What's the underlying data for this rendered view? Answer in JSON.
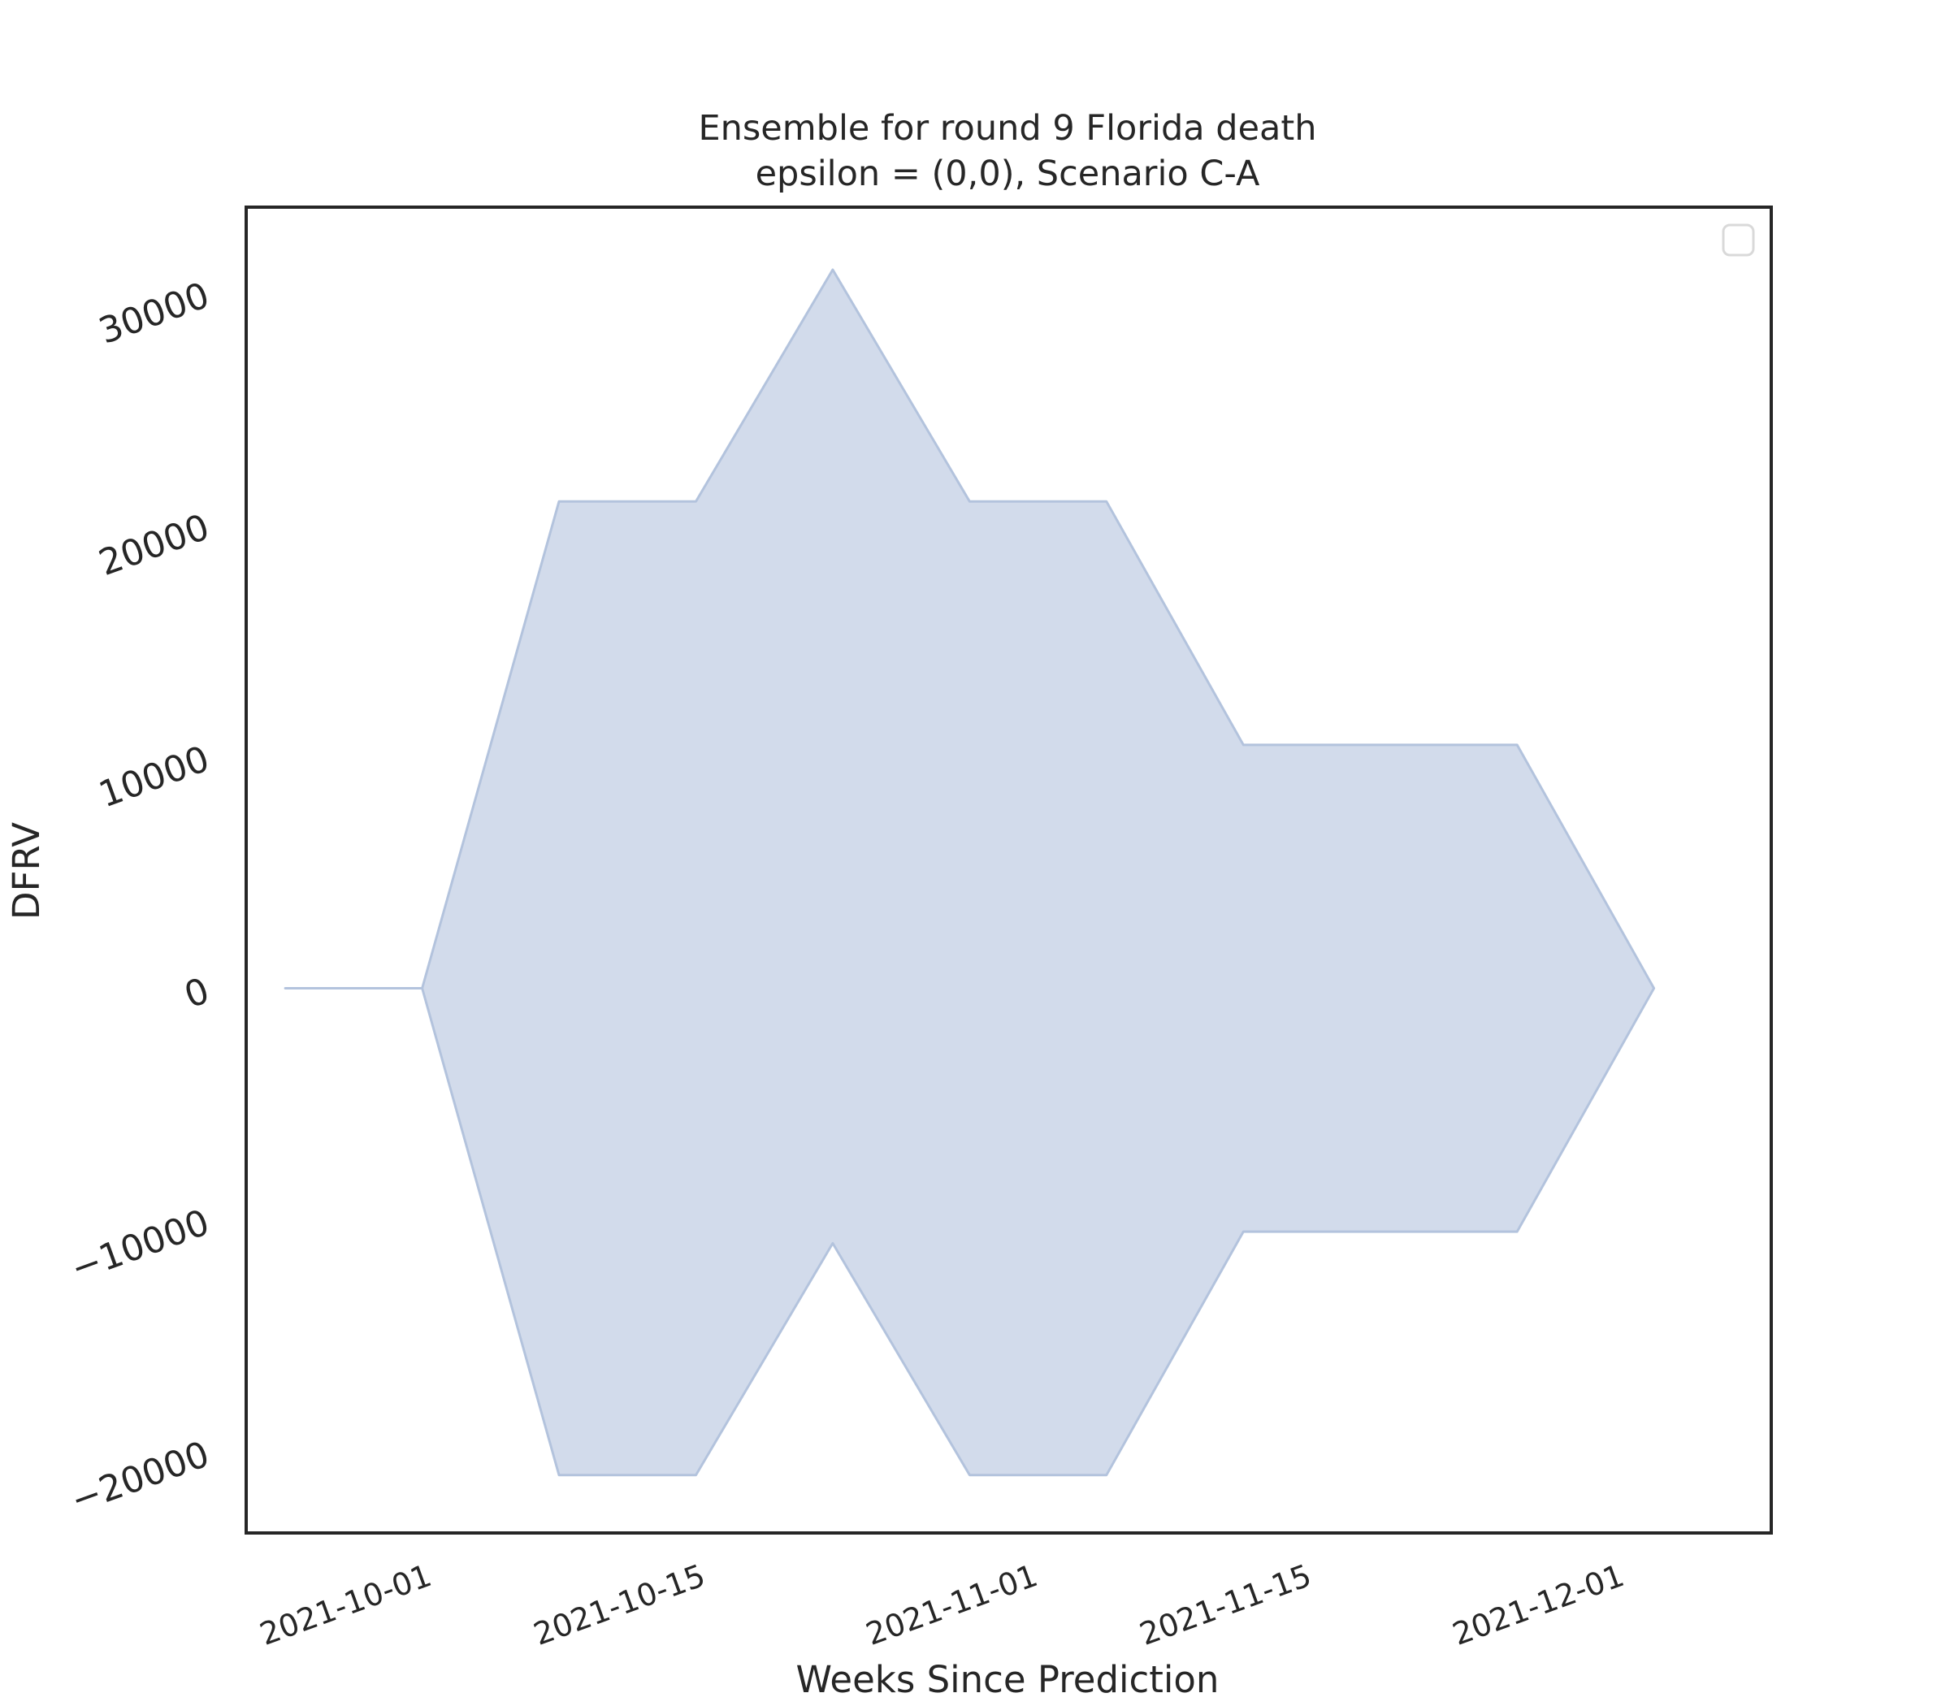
{
  "chart_data": {
    "type": "area",
    "title_line1": "Ensemble for round 9 Florida death",
    "title_line2": "epsilon = (0,0), Scenario C-A",
    "xlabel": "Weeks Since Prediction",
    "ylabel": "DFRV",
    "x_dates": [
      "2021-09-24",
      "2021-10-01",
      "2021-10-08",
      "2021-10-15",
      "2021-10-22",
      "2021-10-29",
      "2021-11-05",
      "2021-11-12",
      "2021-11-19",
      "2021-11-26",
      "2021-12-03"
    ],
    "upper": [
      0,
      0,
      21000,
      21000,
      31000,
      21000,
      21000,
      10500,
      10500,
      10500,
      0
    ],
    "lower": [
      0,
      0,
      -21000,
      -21000,
      -11000,
      -21000,
      -21000,
      -10500,
      -10500,
      -10500,
      0
    ],
    "xlim": [
      "2021-09-22",
      "2021-12-09"
    ],
    "ylim": [
      -23500,
      33700
    ],
    "yticks": [
      {
        "value": -20000,
        "label": "−20000"
      },
      {
        "value": -10000,
        "label": "−10000"
      },
      {
        "value": 0,
        "label": "0"
      },
      {
        "value": 10000,
        "label": "10000"
      },
      {
        "value": 20000,
        "label": "20000"
      },
      {
        "value": 30000,
        "label": "30000"
      }
    ],
    "xticks": [
      {
        "date": "2021-10-01",
        "label": "2021-10-01"
      },
      {
        "date": "2021-10-15",
        "label": "2021-10-15"
      },
      {
        "date": "2021-11-01",
        "label": "2021-11-01"
      },
      {
        "date": "2021-11-15",
        "label": "2021-11-15"
      },
      {
        "date": "2021-12-01",
        "label": "2021-12-01"
      }
    ],
    "fill_color": "#d2dbeb",
    "edge_color": "#b3c3dd",
    "grid": false,
    "legend": "top-right (empty)"
  }
}
